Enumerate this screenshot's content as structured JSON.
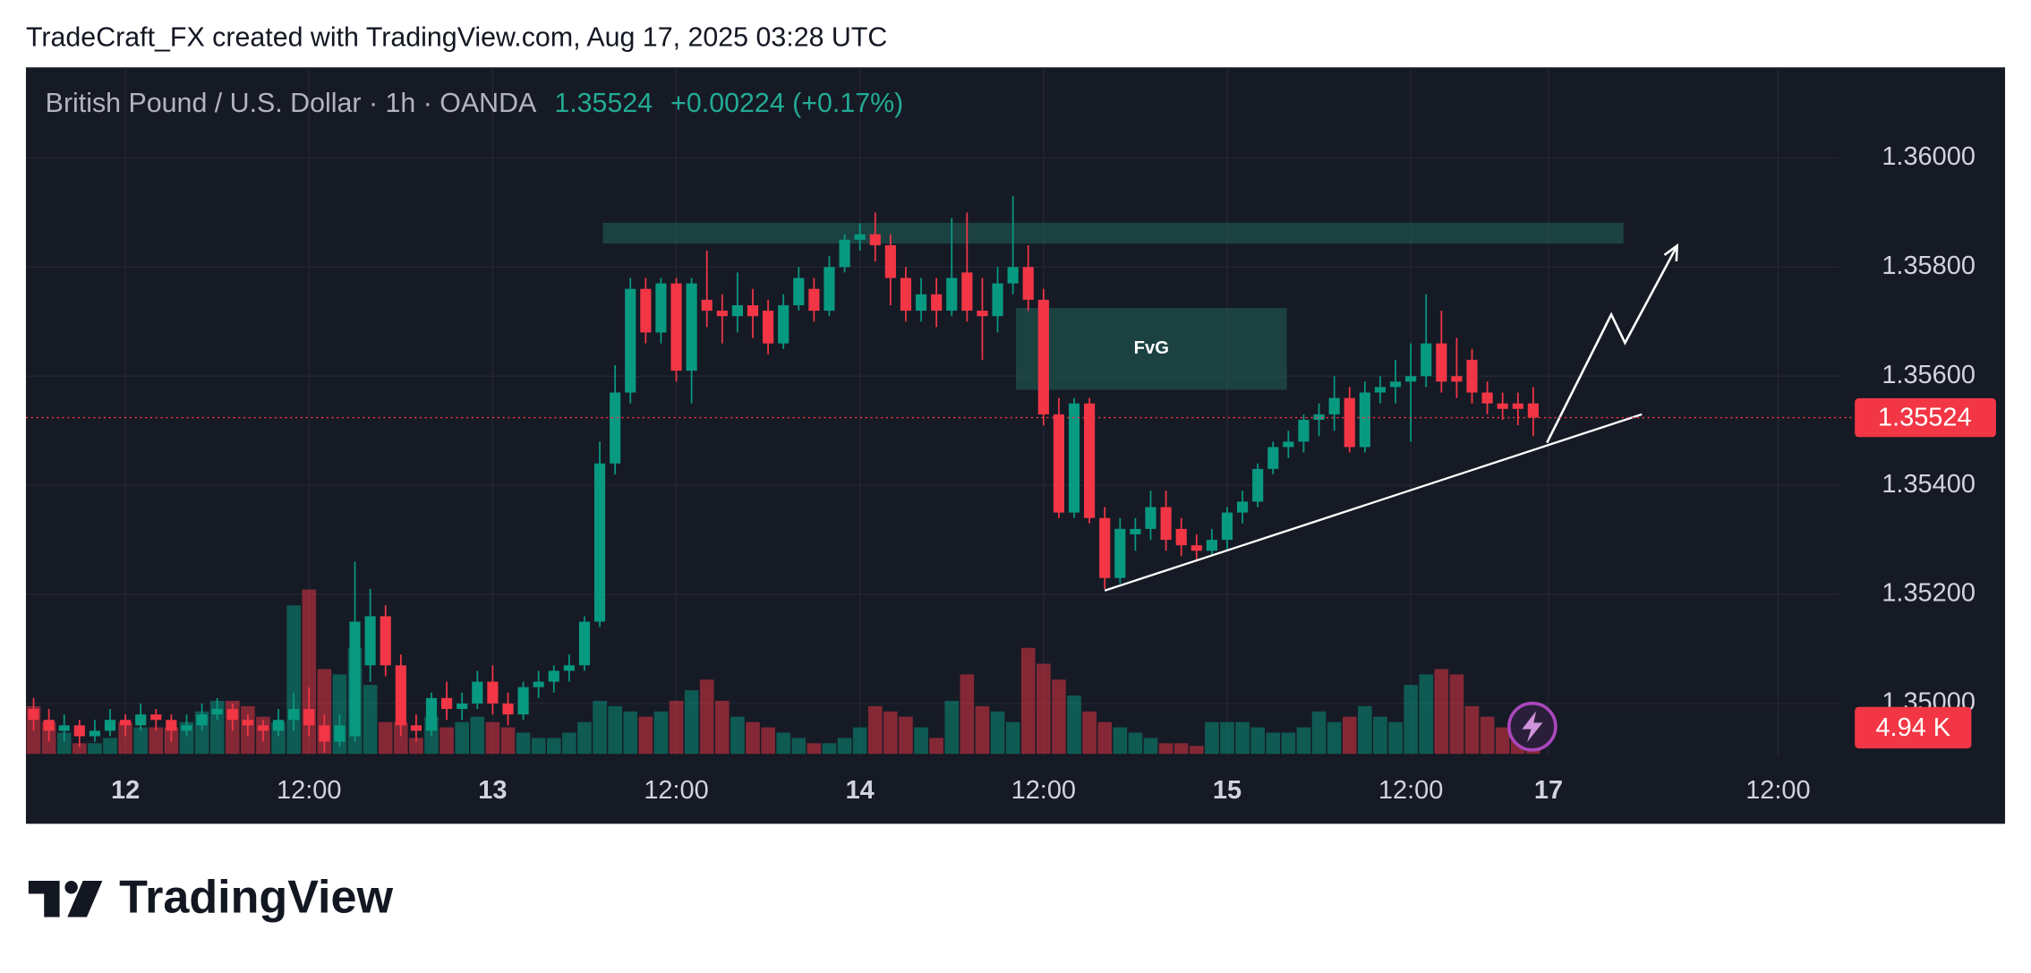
{
  "header": {
    "title": "TradeCraft_FX created with TradingView.com, Aug 17, 2025 03:28 UTC",
    "brand": "TradingView"
  },
  "chart_data": {
    "type": "candlestick",
    "symbol": "British Pound / U.S. Dollar · 1h · OANDA",
    "change": "+0.00224 (+0.17%)",
    "up_color": "#089981",
    "down_color": "#f23645",
    "x": [
      -6,
      -5,
      -4,
      -3,
      -2,
      -1,
      0,
      1,
      2,
      3,
      4,
      5,
      6,
      7,
      8,
      9,
      10,
      11,
      12,
      13,
      14,
      15,
      16,
      17,
      18,
      19,
      20,
      21,
      22,
      23,
      24,
      25,
      26,
      27,
      28,
      29,
      30,
      31,
      32,
      33,
      34,
      35,
      36,
      37,
      38,
      39,
      40,
      41,
      42,
      43,
      44,
      45,
      46,
      47,
      48,
      49,
      50,
      51,
      52,
      53,
      54,
      55,
      56,
      57,
      58,
      59,
      60,
      61,
      62,
      63,
      64,
      65,
      66,
      67,
      68,
      69,
      70,
      71,
      72,
      73,
      74,
      75,
      76,
      77,
      78,
      79,
      80,
      81,
      82,
      83,
      84,
      85,
      86,
      87,
      88,
      89,
      90,
      91,
      92
    ],
    "open": [
      1.3499,
      1.3497,
      1.3495,
      1.3496,
      1.3494,
      1.3495,
      1.3497,
      1.3496,
      1.3498,
      1.3497,
      1.3495,
      1.3496,
      1.3498,
      1.3499,
      1.3497,
      1.3496,
      1.3495,
      1.3497,
      1.3499,
      1.3496,
      1.3493,
      1.3494,
      1.3507,
      1.3516,
      1.3507,
      1.3496,
      1.3495,
      1.3501,
      1.3499,
      1.35,
      1.3504,
      1.35,
      1.3498,
      1.3503,
      1.3504,
      1.3506,
      1.3507,
      1.3515,
      1.3544,
      1.3557,
      1.3576,
      1.3568,
      1.3577,
      1.3561,
      1.3574,
      1.3572,
      1.3571,
      1.3573,
      1.3572,
      1.3566,
      1.3573,
      1.3576,
      1.3572,
      1.358,
      1.3585,
      1.3586,
      1.3584,
      1.3578,
      1.3572,
      1.3575,
      1.3572,
      1.3579,
      1.3572,
      1.3571,
      1.3577,
      1.358,
      1.3574,
      1.3553,
      1.3535,
      1.3555,
      1.3534,
      1.3523,
      1.3531,
      1.3532,
      1.3536,
      1.3532,
      1.3529,
      1.3528,
      1.353,
      1.3535,
      1.3537,
      1.3543,
      1.3547,
      1.3548,
      1.3552,
      1.3553,
      1.3556,
      1.3547,
      1.3557,
      1.3558,
      1.3559,
      1.356,
      1.3566,
      1.356,
      1.3563,
      1.3557,
      1.3555,
      1.3555,
      1.3555
    ],
    "high": [
      1.3501,
      1.3499,
      1.3498,
      1.3497,
      1.3497,
      1.3499,
      1.3498,
      1.35,
      1.3499,
      1.3498,
      1.3498,
      1.35,
      1.3501,
      1.35,
      1.3498,
      1.3497,
      1.3499,
      1.3502,
      1.3503,
      1.3498,
      1.3498,
      1.3526,
      1.3521,
      1.3518,
      1.3509,
      1.3498,
      1.3502,
      1.3504,
      1.3502,
      1.3506,
      1.3507,
      1.3502,
      1.3504,
      1.3506,
      1.3507,
      1.3509,
      1.3516,
      1.3548,
      1.3562,
      1.3578,
      1.3578,
      1.3578,
      1.3578,
      1.3578,
      1.3583,
      1.3575,
      1.3579,
      1.3576,
      1.3574,
      1.3575,
      1.358,
      1.3578,
      1.3582,
      1.3586,
      1.3588,
      1.359,
      1.3586,
      1.358,
      1.3578,
      1.3578,
      1.3589,
      1.359,
      1.3578,
      1.358,
      1.3593,
      1.3584,
      1.3576,
      1.3556,
      1.3556,
      1.3556,
      1.3536,
      1.3534,
      1.3534,
      1.3539,
      1.3539,
      1.3534,
      1.3531,
      1.3532,
      1.3536,
      1.3539,
      1.3544,
      1.3548,
      1.355,
      1.3553,
      1.3555,
      1.356,
      1.3558,
      1.3559,
      1.356,
      1.3563,
      1.3566,
      1.3575,
      1.3572,
      1.3567,
      1.3565,
      1.3559,
      1.3557,
      1.3557,
      1.3558
    ],
    "low": [
      1.3495,
      1.3493,
      1.3493,
      1.3492,
      1.3493,
      1.3494,
      1.3494,
      1.3495,
      1.3495,
      1.3493,
      1.3494,
      1.3495,
      1.3497,
      1.3495,
      1.3494,
      1.3493,
      1.3494,
      1.3495,
      1.3494,
      1.3491,
      1.3492,
      1.3493,
      1.3504,
      1.3505,
      1.3494,
      1.3493,
      1.3494,
      1.3497,
      1.3497,
      1.3499,
      1.3498,
      1.3496,
      1.3497,
      1.3501,
      1.3502,
      1.3504,
      1.3506,
      1.3514,
      1.3542,
      1.3555,
      1.3566,
      1.3566,
      1.3559,
      1.3555,
      1.3569,
      1.3566,
      1.3568,
      1.3567,
      1.3564,
      1.3565,
      1.3572,
      1.357,
      1.3571,
      1.3579,
      1.3583,
      1.3581,
      1.3573,
      1.357,
      1.357,
      1.3569,
      1.3571,
      1.357,
      1.3563,
      1.3568,
      1.3575,
      1.3572,
      1.3551,
      1.3534,
      1.3534,
      1.3533,
      1.3521,
      1.3522,
      1.3528,
      1.353,
      1.3528,
      1.3527,
      1.3526,
      1.3527,
      1.3528,
      1.3533,
      1.3536,
      1.3542,
      1.3545,
      1.3546,
      1.3549,
      1.355,
      1.3546,
      1.3546,
      1.3555,
      1.3555,
      1.3548,
      1.3558,
      1.3557,
      1.3556,
      1.3555,
      1.3553,
      1.3552,
      1.3551,
      1.3549
    ],
    "close": [
      1.3497,
      1.3495,
      1.3496,
      1.3494,
      1.3495,
      1.3497,
      1.3496,
      1.3498,
      1.3497,
      1.3495,
      1.3496,
      1.3498,
      1.3499,
      1.3497,
      1.3496,
      1.3495,
      1.3497,
      1.3499,
      1.3496,
      1.3493,
      1.3496,
      1.3515,
      1.3516,
      1.3507,
      1.3496,
      1.3495,
      1.3501,
      1.3499,
      1.35,
      1.3504,
      1.35,
      1.3498,
      1.3503,
      1.3504,
      1.3506,
      1.3507,
      1.3515,
      1.3544,
      1.3557,
      1.3576,
      1.3568,
      1.3577,
      1.3561,
      1.3577,
      1.3572,
      1.3571,
      1.3573,
      1.3571,
      1.3566,
      1.3573,
      1.3578,
      1.3572,
      1.358,
      1.3585,
      1.3586,
      1.3584,
      1.3578,
      1.3572,
      1.3575,
      1.3572,
      1.3578,
      1.3572,
      1.3571,
      1.3577,
      1.358,
      1.3574,
      1.3553,
      1.3535,
      1.3555,
      1.3534,
      1.3523,
      1.3532,
      1.3532,
      1.3536,
      1.353,
      1.3529,
      1.3528,
      1.353,
      1.3535,
      1.3537,
      1.3543,
      1.3547,
      1.3548,
      1.3552,
      1.3553,
      1.3556,
      1.3547,
      1.3557,
      1.3558,
      1.3559,
      1.356,
      1.3566,
      1.3559,
      1.3559,
      1.3557,
      1.3555,
      1.3554,
      1.3554,
      1.35524
    ],
    "volume": [
      9000,
      6000,
      4000,
      2000,
      2000,
      3000,
      6000,
      5000,
      5000,
      5000,
      6000,
      8000,
      10000,
      10000,
      9000,
      7000,
      6000,
      28000,
      31000,
      16000,
      15000,
      20000,
      13000,
      6000,
      6000,
      3000,
      7000,
      5000,
      6000,
      7000,
      6000,
      5000,
      4000,
      3000,
      3000,
      4000,
      6000,
      10000,
      9000,
      8000,
      7000,
      8000,
      10000,
      12000,
      14000,
      10000,
      7000,
      6000,
      5000,
      4000,
      3000,
      2000,
      2000,
      3000,
      5000,
      9000,
      8000,
      7000,
      5000,
      3000,
      10000,
      15000,
      9000,
      8000,
      6000,
      20000,
      17000,
      14000,
      11000,
      8000,
      6000,
      5000,
      4000,
      3000,
      2000,
      2000,
      1500,
      6000,
      6000,
      6000,
      5000,
      4000,
      4000,
      5000,
      8000,
      6000,
      7000,
      9000,
      7000,
      6000,
      13000,
      15000,
      16000,
      15000,
      9000,
      7000,
      5000,
      5000,
      4940
    ],
    "last_volume_label": "4.94 K",
    "xlim": [
      -6.5,
      112
    ],
    "xticks": [
      {
        "value": 0,
        "label": "12"
      },
      {
        "value": 12,
        "label": "12:00"
      },
      {
        "value": 24,
        "label": "13"
      },
      {
        "value": 36,
        "label": "12:00"
      },
      {
        "value": 48,
        "label": "14"
      },
      {
        "value": 60,
        "label": "12:00"
      },
      {
        "value": 72,
        "label": "15"
      },
      {
        "value": 84,
        "label": "12:00"
      },
      {
        "value": 93,
        "label": "17"
      },
      {
        "value": 108,
        "label": "12:00"
      }
    ],
    "ylim": [
      1.34903,
      1.36166
    ],
    "yticks": [
      {
        "value": 1.35,
        "label": "1.35000"
      },
      {
        "value": 1.352,
        "label": "1.35200"
      },
      {
        "value": 1.354,
        "label": "1.35400"
      },
      {
        "value": 1.356,
        "label": "1.35600"
      },
      {
        "value": 1.358,
        "label": "1.35800"
      },
      {
        "value": 1.36,
        "label": "1.36000"
      }
    ],
    "y2lim": [
      0,
      130000
    ],
    "grid": true,
    "zones": [
      {
        "x": [
          31.2,
          97.9
        ],
        "price": [
          1.35881,
          1.35843
        ]
      },
      {
        "label": "FvG",
        "x": [
          58.2,
          75.9
        ],
        "price": [
          1.35725,
          1.35575
        ]
      }
    ],
    "trendline": {
      "x": [
        64,
        99.1
      ],
      "price": [
        1.35207,
        1.3553
      ]
    },
    "arrow": {
      "x": [
        92.9,
        97.1,
        98,
        101.4
      ],
      "price": [
        1.35478,
        1.35713,
        1.35661,
        1.35839
      ]
    }
  }
}
